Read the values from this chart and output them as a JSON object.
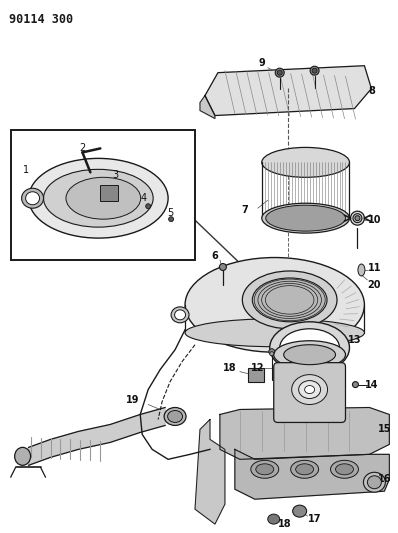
{
  "title": "90114 300",
  "bg_color": "#ffffff",
  "line_color": "#1a1a1a",
  "label_color": "#111111",
  "label_fontsize": 7.0,
  "fig_width": 3.98,
  "fig_height": 5.33,
  "dpi": 100
}
